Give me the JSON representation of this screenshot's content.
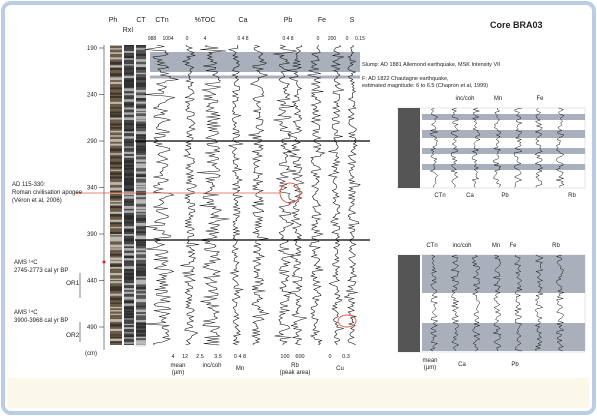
{
  "figure": {
    "title": "Core BRA03",
    "column_headers": [
      "Ph",
      "RxI",
      "CT",
      "CTn",
      "%TOC",
      "Ca",
      "Pb",
      "Fe",
      "S"
    ],
    "top_scales": [
      "988",
      "1004",
      "0",
      "4",
      "0  4  8",
      "0  4  8",
      "0",
      "200",
      "0",
      "0.15"
    ],
    "depth_ticks": [
      190,
      240,
      290,
      340,
      390,
      440,
      490
    ],
    "depth_unit": "(cm)",
    "slump_note": "Slump: AD 1881 Allemond earthquake, MSK Intensity VII",
    "f_note": [
      "F: AD 1822 Chautagne earthquake,",
      "estimated magnitude: 6 to 6.5 (Chapron et al, 1999)"
    ],
    "roman_note": [
      "AD 115-330:",
      "Roman civilisation apogee",
      "(Véron et al, 2006)"
    ],
    "ams1": [
      "AMS ¹⁴C",
      "2745-2773 cal yr BP"
    ],
    "ams2": [
      "AMS ¹⁴C",
      "3900-3968 cal yr BP"
    ],
    "or_labels": [
      "OR1",
      "OR2"
    ],
    "bottom_scales": [
      "4",
      "12",
      "2.5",
      "3.5",
      "0  4  8",
      "100",
      "600",
      "0",
      "0.3"
    ],
    "bottom_labels": [
      "mean",
      "(µm)",
      "inc/coh",
      "Mn",
      "Rb",
      "(peak area)",
      "Cu"
    ],
    "inset1_labels": [
      "inc/coh",
      "Mn",
      "Fe",
      "CTn",
      "Ca",
      "Pb",
      "Rb"
    ],
    "inset2_labels": [
      "CTn",
      "inc/coh",
      "Mn",
      "Fe",
      "Rb",
      "mean",
      "(µm)",
      "Ca",
      "Pb"
    ]
  }
}
